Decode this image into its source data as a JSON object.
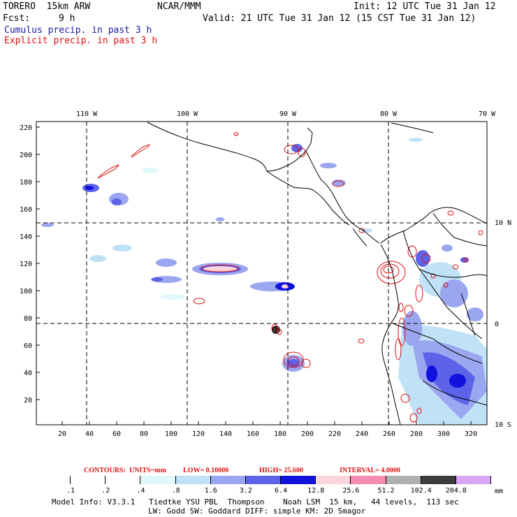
{
  "header": {
    "model": "TORERO  15km ARW",
    "center": "NCAR/MMM",
    "init": "Init: 12 UTC Tue 31 Jan 12",
    "fcst_label": "Fcst:",
    "fcst_hours": "9 h",
    "valid": "Valid: 21 UTC Tue 31 Jan 12 (15 CST Tue 31 Jan 12)",
    "field1": "Cumulus precip. in past 3 h",
    "field2": "Explicit precip. in past 3 h"
  },
  "map": {
    "top_lon_labels": [
      "110 W",
      "100 W",
      "90 W",
      "80 W",
      "70 W"
    ],
    "right_lat_labels": [
      "10 N",
      "0",
      "10 S"
    ],
    "y_ticks": [
      "20",
      "40",
      "60",
      "80",
      "100",
      "120",
      "140",
      "160",
      "180",
      "200",
      "220"
    ],
    "x_ticks": [
      "20",
      "40",
      "60",
      "80",
      "100",
      "120",
      "140",
      "160",
      "180",
      "200",
      "220",
      "240",
      "260",
      "280",
      "300",
      "320"
    ]
  },
  "contour_info": {
    "contours": "CONTOURS:",
    "units": "UNITS=mm",
    "low": "LOW= 0.10000",
    "high": "HIGH= 25.600",
    "interval": "INTERVAL= 4.0000"
  },
  "legend": {
    "values": [
      ".1",
      ".2",
      ".4",
      ".8",
      "1.6",
      "3.2",
      "6.4",
      "12.8",
      "25.6",
      "51.2",
      "102.4",
      "204.8"
    ],
    "unit": "mm",
    "colors": [
      "#ffffff",
      "#ffffff",
      "#ffffff",
      "#e2f7fa",
      "#bfe2f6",
      "#9ba6f0",
      "#5c63e8",
      "#1212dd",
      "#fbd5dc",
      "#f48cb3",
      "#b0b0b0",
      "#3c3c3c",
      "#d8a6f4"
    ]
  },
  "footer": {
    "line1": "Model Info: V3.3.1   Tiedtke YSU PBL  Thompson    Noah LSM  15 km,   44 levels,  113 sec",
    "line2": "LW: Godd SW: Goddard DIFF: simple KM: 2D Smagor"
  }
}
